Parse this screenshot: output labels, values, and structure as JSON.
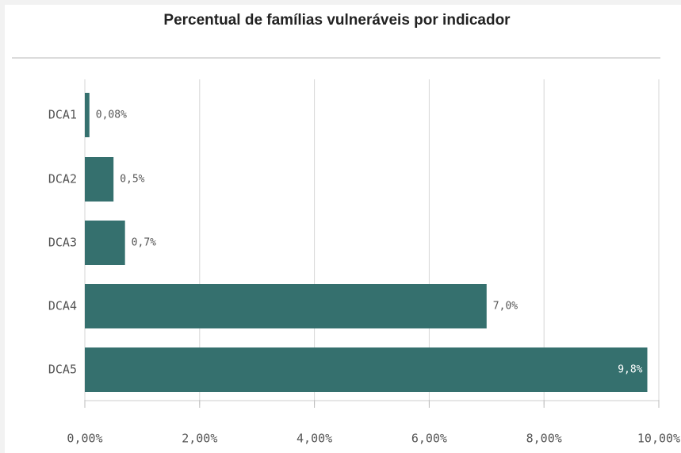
{
  "chart_data": {
    "type": "bar",
    "orientation": "horizontal",
    "title": "Percentual de famílias vulneráveis por indicador",
    "categories": [
      "DCA1",
      "DCA2",
      "DCA3",
      "DCA4",
      "DCA5"
    ],
    "values": [
      0.08,
      0.5,
      0.7,
      7.0,
      9.8
    ],
    "value_labels": [
      "0,08%",
      "0,5%",
      "0,7%",
      "7,0%",
      "9,8%"
    ],
    "color": "#35706e",
    "xlim": [
      0,
      10
    ],
    "xticks": [
      {
        "value": 0,
        "label": "0,00%"
      },
      {
        "value": 2,
        "label": "2,00%"
      },
      {
        "value": 4,
        "label": "4,00%"
      },
      {
        "value": 6,
        "label": "6,00%"
      },
      {
        "value": 8,
        "label": "8,00%"
      },
      {
        "value": 10,
        "label": "10,00%"
      }
    ],
    "grid": true
  }
}
